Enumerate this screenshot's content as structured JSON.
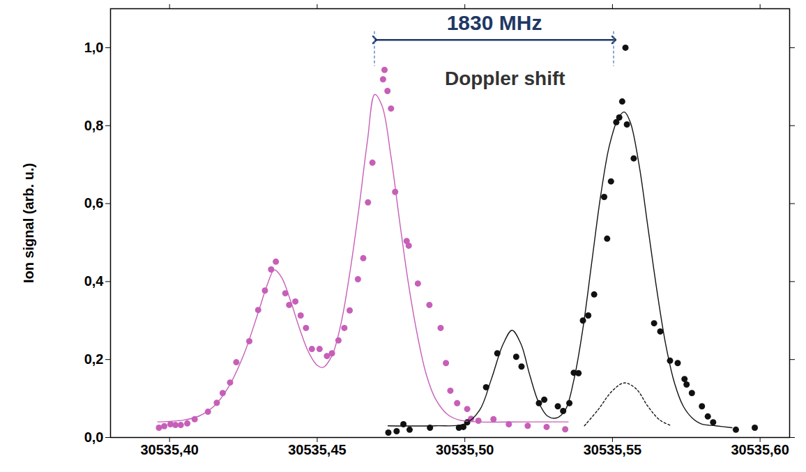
{
  "chart_data": {
    "type": "scatter",
    "y_label": "Ion signal (arb. u.)",
    "xlim": [
      30535.38,
      30535.61
    ],
    "xticks": [
      {
        "value": 30535.4,
        "label": "30535,40"
      },
      {
        "value": 30535.45,
        "label": "30535,45"
      },
      {
        "value": 30535.5,
        "label": "30535,50"
      },
      {
        "value": 30535.55,
        "label": "30535,55"
      },
      {
        "value": 30535.6,
        "label": "30535,60"
      }
    ],
    "ylim": [
      0,
      1.1
    ],
    "yticks": [
      {
        "value": 0,
        "label": "0,0"
      },
      {
        "value": 0.2,
        "label": "0,2"
      },
      {
        "value": 0.4,
        "label": "0,4"
      },
      {
        "value": 0.6,
        "label": "0,6"
      },
      {
        "value": 0.8,
        "label": "0,8"
      },
      {
        "value": 1.0,
        "label": "1,0"
      }
    ],
    "grid": false,
    "series": [
      {
        "type": "scatter",
        "color": "#c65fb8",
        "marker": "circle",
        "x": [
          30535.3964,
          30535.3982,
          30535.4003,
          30535.402,
          30535.4038,
          30535.406,
          30535.4085,
          30535.413,
          30535.416,
          30535.418,
          30535.4205,
          30535.4226,
          30535.427,
          30535.43,
          30535.4323,
          30535.4344,
          30535.436,
          30535.4392,
          30535.4405,
          30535.4426,
          30535.4444,
          30535.4462,
          30535.4482,
          30535.4508,
          30535.4533,
          30535.455,
          30535.4572,
          30535.4592,
          30535.461,
          30535.4638,
          30535.4656,
          30535.4672,
          30535.4687,
          30535.4723,
          30535.4728,
          30535.4738,
          30535.475,
          30535.4764,
          30535.4803,
          30535.481,
          30535.4841,
          30535.488,
          30535.4918,
          30535.4936,
          30535.4951,
          30535.4974,
          30535.5008,
          30535.5021,
          30535.5046,
          30535.5097,
          30535.5149,
          30535.5213,
          30535.5277,
          30535.534
        ],
        "values": [
          0.025,
          0.029,
          0.034,
          0.032,
          0.032,
          0.036,
          0.047,
          0.066,
          0.089,
          0.114,
          0.141,
          0.193,
          0.247,
          0.327,
          0.377,
          0.431,
          0.451,
          0.37,
          0.34,
          0.349,
          0.313,
          0.281,
          0.227,
          0.227,
          0.209,
          0.216,
          0.249,
          0.281,
          0.326,
          0.406,
          0.46,
          0.603,
          0.705,
          0.919,
          0.943,
          0.889,
          0.844,
          0.63,
          0.504,
          0.492,
          0.395,
          0.34,
          0.281,
          0.191,
          0.12,
          0.088,
          0.073,
          0.048,
          0.043,
          0.047,
          0.034,
          0.03,
          0.027,
          0.021
        ]
      },
      {
        "type": "line",
        "color": "#c65fb8",
        "line_style": "solid",
        "x": [
          30535.396,
          30535.405,
          30535.41,
          30535.415,
          30535.42,
          30535.425,
          30535.43,
          30535.433,
          30535.4355,
          30535.438,
          30535.441,
          30535.444,
          30535.447,
          30535.45,
          30535.452,
          30535.455,
          30535.458,
          30535.461,
          30535.464,
          30535.467,
          30535.4695,
          30535.472,
          30535.475,
          30535.478,
          30535.481,
          30535.484,
          30535.487,
          30535.49,
          30535.494,
          30535.498,
          30535.505,
          30535.52,
          30535.535
        ],
        "values": [
          0.04,
          0.045,
          0.055,
          0.08,
          0.13,
          0.21,
          0.32,
          0.39,
          0.43,
          0.41,
          0.35,
          0.28,
          0.22,
          0.185,
          0.18,
          0.21,
          0.29,
          0.42,
          0.58,
          0.76,
          0.88,
          0.85,
          0.72,
          0.55,
          0.39,
          0.26,
          0.16,
          0.1,
          0.06,
          0.045,
          0.04,
          0.04,
          0.04
        ]
      },
      {
        "type": "scatter",
        "color": "#111111",
        "marker": "circle",
        "x": [
          30535.4741,
          30535.4769,
          30535.4792,
          30535.4813,
          30535.4882,
          30535.498,
          30535.4995,
          30535.5008,
          30535.5072,
          30535.511,
          30535.5174,
          30535.5192,
          30535.5251,
          30535.5269,
          30535.5315,
          30535.5333,
          30535.5354,
          30535.5369,
          30535.5385,
          30535.54,
          30535.5418,
          30535.5438,
          30535.5472,
          30535.5482,
          30535.5495,
          30535.5513,
          30535.5523,
          30535.5533,
          30535.5544,
          30535.5549,
          30535.5572,
          30535.5641,
          30535.5662,
          30535.5695,
          30535.5721,
          30535.5744,
          30535.5751,
          30535.5769,
          30535.5803,
          30535.5823,
          30535.5841,
          30535.5918,
          30535.5982
        ],
        "values": [
          0.0125,
          0.016,
          0.034,
          0.02,
          0.025,
          0.025,
          0.027,
          0.039,
          0.129,
          0.216,
          0.207,
          0.182,
          0.088,
          0.097,
          0.08,
          0.068,
          0.088,
          0.166,
          0.165,
          0.3,
          0.313,
          0.367,
          0.617,
          0.51,
          0.657,
          0.809,
          0.821,
          0.862,
          1.0,
          0.803,
          0.716,
          0.293,
          0.272,
          0.197,
          0.191,
          0.15,
          0.136,
          0.114,
          0.08,
          0.054,
          0.039,
          0.02,
          0.025
        ]
      },
      {
        "type": "line",
        "color": "#111111",
        "line_style": "solid",
        "x": [
          30535.474,
          30535.49,
          30535.5,
          30535.505,
          30535.509,
          30535.513,
          30535.516,
          30535.519,
          30535.522,
          30535.525,
          30535.528,
          30535.531,
          30535.534,
          30535.537,
          30535.54,
          30535.543,
          30535.546,
          30535.549,
          30535.552,
          30535.554,
          30535.556,
          30535.559,
          30535.562,
          30535.565,
          30535.568,
          30535.571,
          30535.574,
          30535.577,
          30535.58,
          30535.585,
          30535.5905
        ],
        "values": [
          0.03,
          0.03,
          0.035,
          0.07,
          0.15,
          0.24,
          0.275,
          0.24,
          0.16,
          0.09,
          0.055,
          0.05,
          0.07,
          0.15,
          0.28,
          0.45,
          0.62,
          0.75,
          0.82,
          0.835,
          0.81,
          0.7,
          0.54,
          0.38,
          0.24,
          0.14,
          0.08,
          0.05,
          0.035,
          0.03,
          0.025
        ]
      },
      {
        "type": "line",
        "color": "#111111",
        "line_style": "dotted",
        "x": [
          30535.5405,
          30535.545,
          30535.55,
          30535.554,
          30535.558,
          30535.562,
          30535.566,
          30535.57
        ],
        "values": [
          0.03,
          0.07,
          0.12,
          0.14,
          0.125,
          0.08,
          0.045,
          0.03
        ]
      }
    ],
    "arrow": {
      "x1": 30535.4695,
      "x2": 30535.5505,
      "y": 1.02,
      "color": "#1f3864"
    },
    "annotations": [
      {
        "text": "1830 MHz",
        "x": 30535.51,
        "y": 1.063,
        "color": "#1f3864"
      },
      {
        "text": "Doppler shift",
        "x": 30535.5136,
        "y": 0.92,
        "color": "#333333"
      }
    ]
  }
}
